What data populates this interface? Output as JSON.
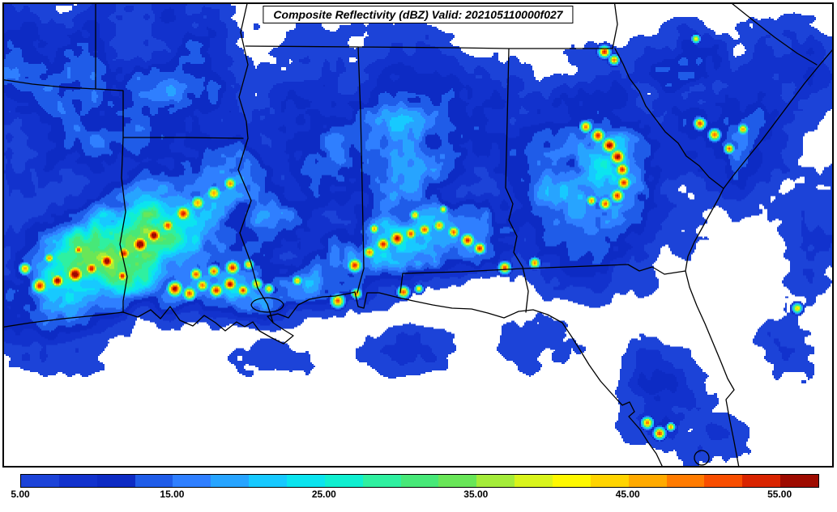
{
  "title": "Composite Reflectivity (dBZ) Valid: 202105110000f027",
  "chart_data": {
    "type": "heatmap",
    "title": "Composite Reflectivity (dBZ) Valid: 202105110000f027",
    "units": "dBZ",
    "geography": "Southeastern United States: Louisiana, Mississippi, Alabama, Georgia, Florida and Gulf of Mexico coastline",
    "value_range": [
      5,
      57.5
    ],
    "value_step": 2.5,
    "colorbar_ticks": [
      {
        "label": "5.00",
        "value": 5
      },
      {
        "label": "15.00",
        "value": 15
      },
      {
        "label": "25.00",
        "value": 25
      },
      {
        "label": "35.00",
        "value": 35
      },
      {
        "label": "45.00",
        "value": 45
      },
      {
        "label": "55.00",
        "value": 55
      }
    ],
    "colormap": [
      "#1c43d8",
      "#1232cd",
      "#0d2bc4",
      "#1f5ce8",
      "#2f7fff",
      "#27a4ff",
      "#17c9ff",
      "#0be4ef",
      "#10efd0",
      "#2ff0a0",
      "#47e878",
      "#69e658",
      "#a4ec3a",
      "#d9f41c",
      "#fef800",
      "#ffd400",
      "#ffaa00",
      "#ff7b00",
      "#f84e00",
      "#d92400",
      "#9e0b00"
    ],
    "storm_regions_format": "[cx,cy,rx,ry,rotation_deg,base_dbz] broad echo envelopes in image pixel coords",
    "storm_regions": [
      [
        120,
        115,
        240,
        165,
        0,
        14
      ],
      [
        180,
        105,
        95,
        55,
        0,
        17
      ],
      [
        165,
        292,
        195,
        85,
        -27,
        28
      ],
      [
        255,
        300,
        210,
        115,
        -15,
        16
      ],
      [
        318,
        356,
        175,
        48,
        -4,
        22
      ],
      [
        480,
        200,
        195,
        165,
        -5,
        15
      ],
      [
        515,
        295,
        155,
        58,
        -12,
        24
      ],
      [
        390,
        105,
        130,
        95,
        0,
        10
      ],
      [
        600,
        145,
        130,
        105,
        0,
        10
      ],
      [
        730,
        210,
        175,
        155,
        0,
        15
      ],
      [
        752,
        202,
        75,
        75,
        0,
        22
      ],
      [
        888,
        152,
        135,
        112,
        0,
        13
      ],
      [
        845,
        78,
        85,
        62,
        0,
        15
      ],
      [
        958,
        92,
        115,
        85,
        0,
        11
      ],
      [
        90,
        438,
        125,
        42,
        0,
        7
      ],
      [
        300,
        442,
        185,
        48,
        0,
        7
      ],
      [
        520,
        432,
        155,
        55,
        0,
        6
      ],
      [
        645,
        422,
        125,
        65,
        0,
        7
      ],
      [
        815,
        492,
        72,
        95,
        0,
        10
      ],
      [
        872,
        552,
        72,
        55,
        0,
        8
      ],
      [
        1000,
        300,
        72,
        185,
        0,
        8
      ],
      [
        978,
        420,
        62,
        85,
        0,
        7
      ]
    ],
    "storm_cells_format": "[x,y,radius_px,peak_dbz] convective cores in image pixel coords",
    "storm_cells": [
      [
        48,
        352,
        9,
        50
      ],
      [
        70,
        346,
        8,
        53
      ],
      [
        92,
        338,
        10,
        56
      ],
      [
        112,
        331,
        8,
        50
      ],
      [
        131,
        322,
        9,
        54
      ],
      [
        152,
        312,
        8,
        51
      ],
      [
        172,
        301,
        10,
        57
      ],
      [
        189,
        290,
        9,
        55
      ],
      [
        206,
        278,
        8,
        50
      ],
      [
        225,
        263,
        9,
        53
      ],
      [
        243,
        250,
        8,
        49
      ],
      [
        263,
        238,
        8,
        47
      ],
      [
        283,
        226,
        7,
        45
      ],
      [
        30,
        331,
        7,
        47
      ],
      [
        60,
        318,
        6,
        45
      ],
      [
        96,
        308,
        6,
        46
      ],
      [
        150,
        340,
        7,
        48
      ],
      [
        215,
        356,
        9,
        54
      ],
      [
        233,
        362,
        8,
        50
      ],
      [
        249,
        352,
        7,
        48
      ],
      [
        266,
        358,
        8,
        52
      ],
      [
        283,
        350,
        8,
        55
      ],
      [
        299,
        358,
        7,
        50
      ],
      [
        316,
        350,
        7,
        47
      ],
      [
        331,
        356,
        6,
        46
      ],
      [
        241,
        338,
        7,
        50
      ],
      [
        263,
        334,
        7,
        48
      ],
      [
        286,
        330,
        8,
        52
      ],
      [
        306,
        326,
        6,
        46
      ],
      [
        366,
        346,
        6,
        45
      ],
      [
        416,
        371,
        8,
        53
      ],
      [
        439,
        362,
        6,
        47
      ],
      [
        497,
        360,
        7,
        50
      ],
      [
        516,
        356,
        5,
        45
      ],
      [
        437,
        327,
        8,
        52
      ],
      [
        455,
        311,
        7,
        49
      ],
      [
        472,
        301,
        8,
        53
      ],
      [
        489,
        294,
        9,
        56
      ],
      [
        506,
        288,
        7,
        50
      ],
      [
        523,
        283,
        7,
        51
      ],
      [
        541,
        278,
        7,
        48
      ],
      [
        559,
        286,
        7,
        50
      ],
      [
        576,
        296,
        8,
        54
      ],
      [
        591,
        306,
        7,
        50
      ],
      [
        461,
        282,
        6,
        45
      ],
      [
        511,
        265,
        6,
        44
      ],
      [
        546,
        258,
        5,
        43
      ],
      [
        622,
        330,
        7,
        48
      ],
      [
        659,
        324,
        6,
        46
      ],
      [
        722,
        156,
        7,
        49
      ],
      [
        737,
        167,
        8,
        53
      ],
      [
        751,
        179,
        9,
        56
      ],
      [
        761,
        193,
        9,
        57
      ],
      [
        767,
        209,
        8,
        54
      ],
      [
        769,
        225,
        8,
        52
      ],
      [
        761,
        241,
        8,
        50
      ],
      [
        746,
        251,
        7,
        47
      ],
      [
        729,
        247,
        6,
        45
      ],
      [
        863,
        152,
        7,
        50
      ],
      [
        881,
        166,
        7,
        52
      ],
      [
        899,
        183,
        6,
        47
      ],
      [
        916,
        159,
        6,
        45
      ],
      [
        858,
        47,
        5,
        44
      ],
      [
        745,
        63,
        7,
        51
      ],
      [
        757,
        73,
        6,
        47
      ],
      [
        798,
        522,
        7,
        49
      ],
      [
        813,
        535,
        7,
        51
      ],
      [
        827,
        527,
        5,
        44
      ],
      [
        983,
        380,
        6,
        46
      ]
    ]
  }
}
